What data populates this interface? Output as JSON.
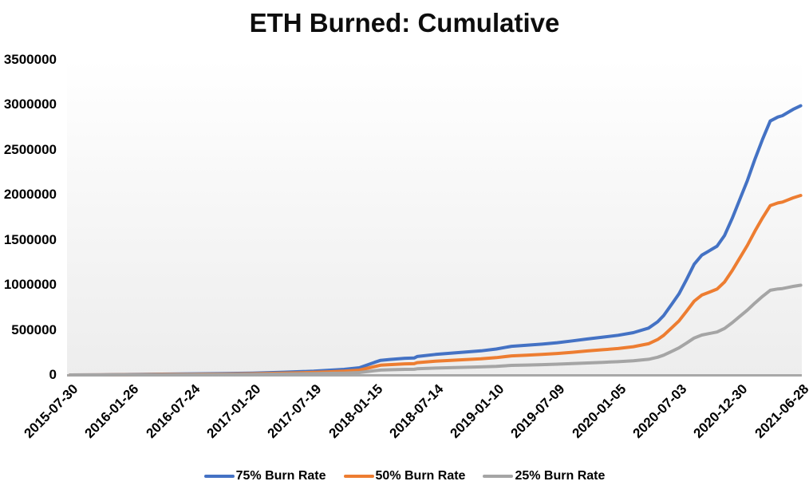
{
  "chart_data": {
    "type": "line",
    "title": "ETH Burned: Cumulative",
    "xlabel": "",
    "ylabel": "",
    "ylim": [
      0,
      3500000
    ],
    "grid": false,
    "legend_position": "bottom",
    "colors": {
      "axis_line": "#a8a8a8",
      "plot_bg_top": "#ffffff",
      "plot_bg_bottom": "#ededed",
      "text": "#000000"
    },
    "y_ticks": [
      0,
      500000,
      1000000,
      1500000,
      2000000,
      2500000,
      3000000,
      3500000
    ],
    "x_tick_labels": [
      "2015-07-30",
      "2016-01-26",
      "2016-07-24",
      "2017-01-20",
      "2017-07-19",
      "2018-01-15",
      "2018-07-14",
      "2019-01-10",
      "2019-07-09",
      "2020-01-05",
      "2020-07-03",
      "2020-12-30",
      "2021-06-28"
    ],
    "x": [
      0,
      0.5,
      1,
      1.5,
      2,
      2.5,
      3,
      3.5,
      4,
      4.25,
      4.5,
      4.75,
      5,
      5.1,
      5.25,
      5.5,
      5.65,
      5.7,
      6,
      6.25,
      6.5,
      6.75,
      7,
      7.25,
      7.5,
      7.75,
      8,
      8.25,
      8.5,
      8.75,
      9,
      9.25,
      9.5,
      9.65,
      9.75,
      9.875,
      10,
      10.125,
      10.25,
      10.375,
      10.5,
      10.625,
      10.75,
      10.875,
      11,
      11.125,
      11.25,
      11.375,
      11.5,
      11.625,
      11.7,
      11.8,
      11.875,
      12
    ],
    "series": [
      {
        "name": "75% Burn Rate",
        "color": "#4472C4",
        "values": [
          0,
          1000,
          5000,
          9000,
          12000,
          15000,
          20000,
          30000,
          42000,
          52000,
          62000,
          80000,
          140000,
          162000,
          172000,
          185000,
          188000,
          205000,
          228000,
          242000,
          255000,
          268000,
          288000,
          318000,
          330000,
          342000,
          358000,
          378000,
          400000,
          420000,
          440000,
          470000,
          520000,
          590000,
          660000,
          780000,
          900000,
          1060000,
          1230000,
          1330000,
          1380000,
          1430000,
          1550000,
          1740000,
          1950000,
          2160000,
          2400000,
          2620000,
          2820000,
          2865000,
          2880000,
          2920000,
          2950000,
          2990000
        ]
      },
      {
        "name": "50% Burn Rate",
        "color": "#ED7D31",
        "values": [
          0,
          700,
          3300,
          6000,
          8000,
          10000,
          13300,
          20000,
          28000,
          34700,
          41300,
          53300,
          93300,
          108000,
          114700,
          123300,
          125300,
          136700,
          152000,
          161300,
          170000,
          178700,
          192000,
          212000,
          220000,
          228000,
          238700,
          252000,
          266700,
          280000,
          293300,
          313300,
          346700,
          393300,
          440000,
          520000,
          600000,
          706700,
          820000,
          886700,
          920000,
          953300,
          1033300,
          1160000,
          1300000,
          1440000,
          1600000,
          1746700,
          1880000,
          1910000,
          1920000,
          1946700,
          1966700,
          1993300
        ]
      },
      {
        "name": "25% Burn Rate",
        "color": "#A5A5A5",
        "values": [
          0,
          300,
          1700,
          3000,
          4000,
          5000,
          6700,
          10000,
          14000,
          17300,
          20700,
          26700,
          46700,
          54000,
          57300,
          61700,
          62700,
          68300,
          76000,
          80700,
          85000,
          89300,
          96000,
          106000,
          110000,
          114000,
          119300,
          126000,
          133300,
          140000,
          146700,
          156700,
          173300,
          196700,
          220000,
          260000,
          300000,
          353300,
          410000,
          443300,
          460000,
          476700,
          516700,
          580000,
          650000,
          720000,
          800000,
          873300,
          940000,
          955000,
          960000,
          973300,
          983300,
          996700
        ]
      }
    ]
  }
}
